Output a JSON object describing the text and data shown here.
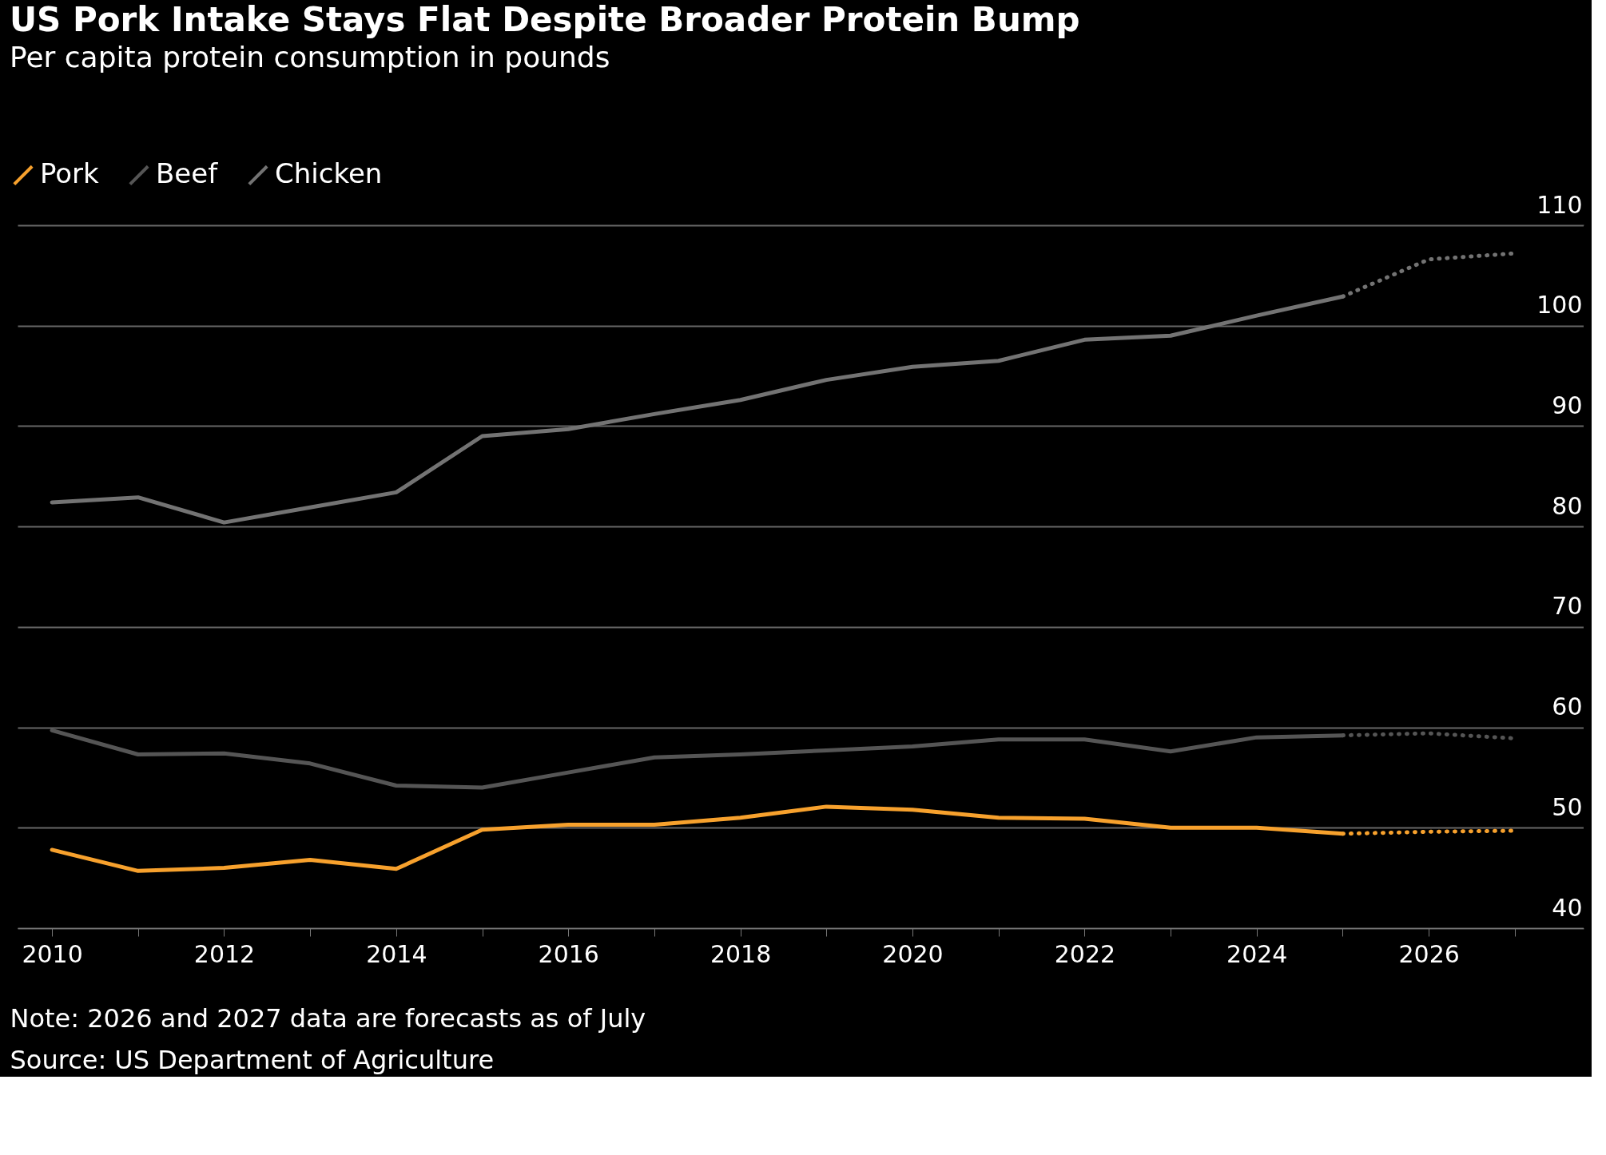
{
  "chart_data": {
    "type": "line",
    "title": "US Pork Intake Stays Flat Despite Broader Protein Bump",
    "subtitle": "Per capita protein consumption in pounds",
    "x": [
      2010,
      2011,
      2012,
      2013,
      2014,
      2015,
      2016,
      2017,
      2018,
      2019,
      2020,
      2021,
      2022,
      2023,
      2024,
      2025
    ],
    "series": [
      {
        "name": "Pork",
        "color": "#f7a12d",
        "line_style": "solid",
        "values": [
          47.8,
          45.7,
          46.0,
          46.8,
          45.9,
          49.8,
          50.3,
          50.3,
          51.0,
          52.1,
          51.8,
          51.0,
          50.9,
          50.0,
          50.0,
          49.4
        ]
      },
      {
        "name": "Beef",
        "color": "#555555",
        "line_style": "solid",
        "values": [
          59.7,
          57.3,
          57.4,
          56.4,
          54.2,
          54.0,
          55.5,
          57.0,
          57.3,
          57.7,
          58.1,
          58.8,
          58.8,
          57.6,
          59.0,
          59.2
        ]
      },
      {
        "name": "Chicken",
        "color": "#737373",
        "line_style": "solid",
        "values": [
          82.4,
          82.9,
          80.4,
          81.9,
          83.4,
          89.0,
          89.7,
          91.2,
          92.6,
          94.6,
          95.9,
          96.5,
          98.6,
          99.0,
          101.0,
          102.9
        ]
      },
      {
        "color": "#f7a12d",
        "line_style": "dotted",
        "x": [
          2025,
          2026,
          2027
        ],
        "values": [
          49.4,
          49.6,
          49.7
        ]
      },
      {
        "color": "#555555",
        "line_style": "dotted",
        "x": [
          2025,
          2026,
          2027
        ],
        "values": [
          59.2,
          59.4,
          58.9
        ]
      },
      {
        "color": "#737373",
        "line_style": "dotted",
        "x": [
          2025,
          2026,
          2027
        ],
        "values": [
          102.9,
          106.6,
          107.2
        ]
      }
    ],
    "xlim": [
      2009.6,
      2027.8
    ],
    "xticks": [
      2010,
      {
        "value": 2011,
        "label": null
      },
      2012,
      {
        "value": 2013,
        "label": null
      },
      2014,
      {
        "value": 2015,
        "label": null
      },
      2016,
      {
        "value": 2017,
        "label": null
      },
      2018,
      {
        "value": 2019,
        "label": null
      },
      2020,
      {
        "value": 2021,
        "label": null
      },
      2022,
      {
        "value": 2023,
        "label": null
      },
      2024,
      {
        "value": 2025,
        "label": null
      },
      2026,
      {
        "value": 2027,
        "label": null
      }
    ],
    "ylim": [
      40,
      110
    ],
    "yticks": [
      40,
      50,
      60,
      70,
      80,
      90,
      100,
      110
    ],
    "grid": "y",
    "legend": "top left",
    "annotations": [
      "Note: 2026 and 2027 data are forecasts as of July",
      "Source: US Department of Agriculture"
    ]
  }
}
